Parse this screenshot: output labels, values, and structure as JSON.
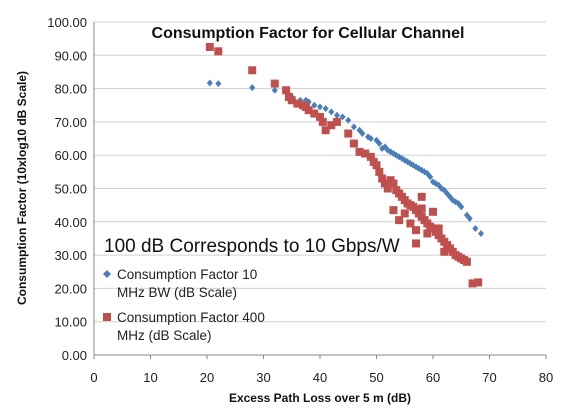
{
  "chart_data": {
    "type": "scatter",
    "title": "Consumption Factor  for Cellular Channel",
    "xlabel": "Excess Path Loss over 5 m (dB)",
    "ylabel": "Consumption Factor (10xlog10 dB Scale)",
    "xlim": [
      0,
      80
    ],
    "ylim": [
      0,
      100
    ],
    "x_ticks": [
      "0",
      "10",
      "20",
      "30",
      "40",
      "50",
      "60",
      "70",
      "80"
    ],
    "y_ticks": [
      "0.00",
      "10.00",
      "20.00",
      "30.00",
      "40.00",
      "50.00",
      "60.00",
      "70.00",
      "80.00",
      "90.00",
      "100.00"
    ],
    "grid": "horizontal",
    "annotation": "100 dB Corresponds to 10 Gbps/W",
    "legend_position": "lower-left",
    "series": [
      {
        "name": "Consumption Factor 10 MHz BW (dB Scale)",
        "legend_lines": [
          "Consumption Factor 10",
          "MHz BW (dB Scale)"
        ],
        "color": "#4a7ebb",
        "marker": "diamond",
        "points": [
          [
            20.5,
            81.7
          ],
          [
            22,
            81.5
          ],
          [
            28,
            80.3
          ],
          [
            32,
            79.5
          ],
          [
            35,
            77.5
          ],
          [
            36.5,
            76.5
          ],
          [
            37.5,
            76.5
          ],
          [
            38,
            76
          ],
          [
            39,
            75
          ],
          [
            40,
            74.5
          ],
          [
            41,
            74
          ],
          [
            42,
            73
          ],
          [
            43,
            72
          ],
          [
            44,
            71.5
          ],
          [
            45,
            70.5
          ],
          [
            46,
            68.5
          ],
          [
            47,
            67.5
          ],
          [
            47.5,
            66.5
          ],
          [
            48.5,
            65.5
          ],
          [
            49,
            65
          ],
          [
            50,
            64.5
          ],
          [
            50.5,
            63.5
          ],
          [
            51,
            62
          ],
          [
            51.5,
            62.5
          ],
          [
            52,
            61.5
          ],
          [
            52.5,
            61
          ],
          [
            53,
            60.5
          ],
          [
            53.5,
            60
          ],
          [
            54,
            59.5
          ],
          [
            54.5,
            59
          ],
          [
            55,
            58.5
          ],
          [
            55.5,
            58
          ],
          [
            56,
            57.5
          ],
          [
            56.5,
            57
          ],
          [
            57,
            56.5
          ],
          [
            57.5,
            56
          ],
          [
            58,
            55.5
          ],
          [
            58.5,
            55
          ],
          [
            59,
            54.5
          ],
          [
            59.5,
            53.5
          ],
          [
            60,
            52
          ],
          [
            60.5,
            51.5
          ],
          [
            61,
            51
          ],
          [
            61.5,
            50
          ],
          [
            62,
            49.5
          ],
          [
            62.5,
            48.5
          ],
          [
            63,
            47.5
          ],
          [
            63.5,
            46.5
          ],
          [
            64,
            46
          ],
          [
            64.5,
            45.5
          ],
          [
            65,
            44.5
          ],
          [
            66,
            42
          ],
          [
            66.5,
            41
          ],
          [
            67.5,
            38
          ],
          [
            68.5,
            36.5
          ]
        ]
      },
      {
        "name": "Consumption Factor 400 MHz (dB Scale)",
        "legend_lines": [
          "Consumption Factor 400",
          "MHz (dB Scale)"
        ],
        "color": "#c0504d",
        "marker": "square",
        "points": [
          [
            20.5,
            92.5
          ],
          [
            22,
            91.2
          ],
          [
            28,
            85.5
          ],
          [
            32,
            81.5
          ],
          [
            34,
            79.5
          ],
          [
            34.5,
            77.5
          ],
          [
            35,
            76.5
          ],
          [
            36,
            75.5
          ],
          [
            37,
            75
          ],
          [
            37.5,
            74.5
          ],
          [
            38,
            73.5
          ],
          [
            39,
            72.5
          ],
          [
            40,
            71.5
          ],
          [
            40.5,
            70
          ],
          [
            41,
            67.5
          ],
          [
            42,
            69
          ],
          [
            43,
            70
          ],
          [
            45,
            66.5
          ],
          [
            46,
            63.5
          ],
          [
            47,
            61
          ],
          [
            48,
            60.5
          ],
          [
            49,
            59.5
          ],
          [
            49.5,
            58
          ],
          [
            50,
            57
          ],
          [
            50.5,
            55
          ],
          [
            51,
            53
          ],
          [
            51.5,
            51.5
          ],
          [
            52,
            50
          ],
          [
            52.5,
            52.5
          ],
          [
            53,
            51.5
          ],
          [
            53.5,
            49.5
          ],
          [
            54,
            48.5
          ],
          [
            54.5,
            47.5
          ],
          [
            55,
            46.5
          ],
          [
            55.5,
            45.5
          ],
          [
            56,
            45
          ],
          [
            56.5,
            44.5
          ],
          [
            57,
            43.5
          ],
          [
            57.5,
            42.5
          ],
          [
            58,
            41.5
          ],
          [
            58.5,
            40.5
          ],
          [
            59,
            39.5
          ],
          [
            59.5,
            38.5
          ],
          [
            60,
            38
          ],
          [
            60.5,
            37
          ],
          [
            61,
            36
          ],
          [
            61.5,
            35
          ],
          [
            62,
            34
          ],
          [
            62.5,
            33
          ],
          [
            63,
            32
          ],
          [
            63.5,
            31
          ],
          [
            64,
            30
          ],
          [
            64.5,
            29.5
          ],
          [
            65,
            29
          ],
          [
            65.5,
            28.5
          ],
          [
            66,
            28
          ],
          [
            67,
            21.5
          ],
          [
            68,
            21.8
          ],
          [
            54,
            40.5
          ],
          [
            55,
            42.5
          ],
          [
            56,
            39.5
          ],
          [
            57,
            37.5
          ],
          [
            58,
            44
          ],
          [
            59,
            36.5
          ],
          [
            60,
            43
          ],
          [
            61,
            38
          ],
          [
            62,
            31
          ],
          [
            58,
            47.5
          ],
          [
            53,
            43.5
          ],
          [
            57,
            33.5
          ]
        ]
      }
    ]
  }
}
